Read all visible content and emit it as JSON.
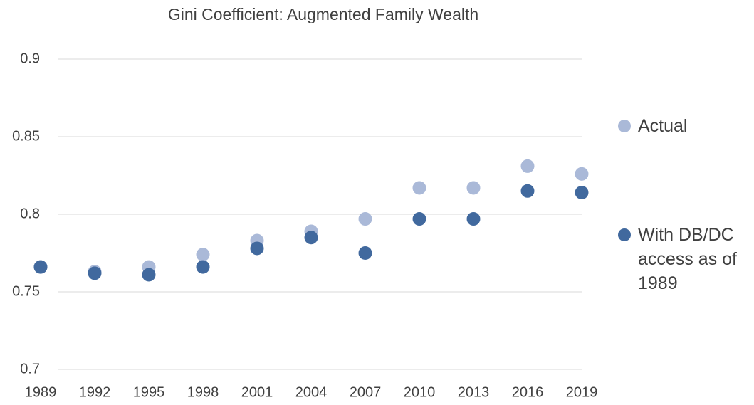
{
  "chart_data": {
    "type": "scatter",
    "title": "Gini Coefficient: Augmented Family Wealth",
    "categories": [
      "1989",
      "1992",
      "1995",
      "1998",
      "2001",
      "2004",
      "2007",
      "2010",
      "2013",
      "2016",
      "2019"
    ],
    "series": [
      {
        "name": "Actual",
        "color": "#aab9d8",
        "values": [
          0.766,
          0.763,
          0.766,
          0.774,
          0.783,
          0.789,
          0.797,
          0.817,
          0.817,
          0.831,
          0.826
        ]
      },
      {
        "name": "With DB/DC access as of 1989",
        "color": "#41699e",
        "values": [
          0.766,
          0.762,
          0.761,
          0.766,
          0.778,
          0.785,
          0.775,
          0.797,
          0.797,
          0.815,
          0.814
        ]
      }
    ],
    "ylim": [
      0.7,
      0.9
    ],
    "yticks": [
      0.7,
      0.75,
      0.8,
      0.85,
      0.9
    ],
    "grid": true,
    "legend": "right"
  }
}
